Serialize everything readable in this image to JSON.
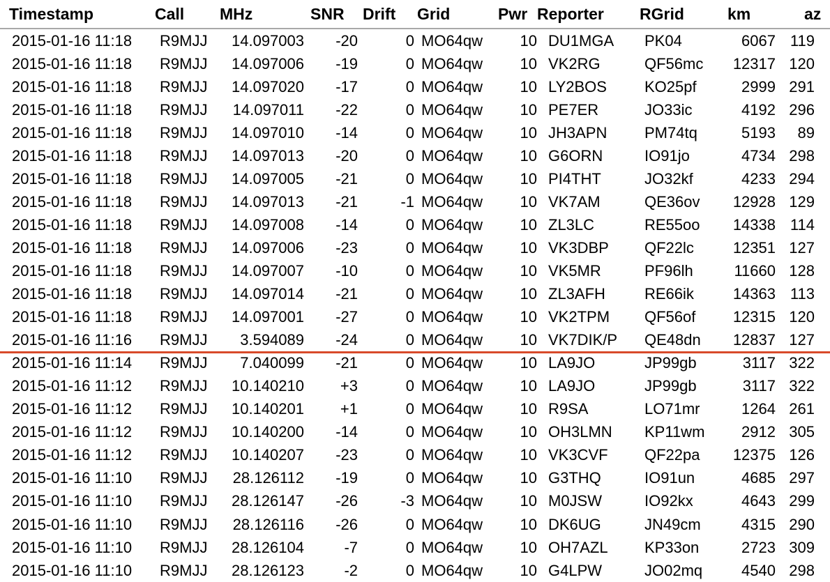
{
  "columns": [
    "Timestamp",
    "Call",
    "MHz",
    "SNR",
    "Drift",
    "Grid",
    "Pwr",
    "Reporter",
    "RGrid",
    "km",
    "az"
  ],
  "colors": {
    "header_rule": "#a8a8a8",
    "separator_line": "#d84a2a"
  },
  "rows": [
    [
      "2015-01-16 11:18",
      "R9MJJ",
      "14.097003",
      "-20",
      "0",
      "MO64qw",
      "10",
      "DU1MGA",
      "PK04",
      "6067",
      "119"
    ],
    [
      "2015-01-16 11:18",
      "R9MJJ",
      "14.097006",
      "-19",
      "0",
      "MO64qw",
      "10",
      "VK2RG",
      "QF56mc",
      "12317",
      "120"
    ],
    [
      "2015-01-16 11:18",
      "R9MJJ",
      "14.097020",
      "-17",
      "0",
      "MO64qw",
      "10",
      "LY2BOS",
      "KO25pf",
      "2999",
      "291"
    ],
    [
      "2015-01-16 11:18",
      "R9MJJ",
      "14.097011",
      "-22",
      "0",
      "MO64qw",
      "10",
      "PE7ER",
      "JO33ic",
      "4192",
      "296"
    ],
    [
      "2015-01-16 11:18",
      "R9MJJ",
      "14.097010",
      "-14",
      "0",
      "MO64qw",
      "10",
      "JH3APN",
      "PM74tq",
      "5193",
      "89"
    ],
    [
      "2015-01-16 11:18",
      "R9MJJ",
      "14.097013",
      "-20",
      "0",
      "MO64qw",
      "10",
      "G6ORN",
      "IO91jo",
      "4734",
      "298"
    ],
    [
      "2015-01-16 11:18",
      "R9MJJ",
      "14.097005",
      "-21",
      "0",
      "MO64qw",
      "10",
      "PI4THT",
      "JO32kf",
      "4233",
      "294"
    ],
    [
      "2015-01-16 11:18",
      "R9MJJ",
      "14.097013",
      "-21",
      "-1",
      "MO64qw",
      "10",
      "VK7AM",
      "QE36ov",
      "12928",
      "129"
    ],
    [
      "2015-01-16 11:18",
      "R9MJJ",
      "14.097008",
      "-14",
      "0",
      "MO64qw",
      "10",
      "ZL3LC",
      "RE55oo",
      "14338",
      "114"
    ],
    [
      "2015-01-16 11:18",
      "R9MJJ",
      "14.097006",
      "-23",
      "0",
      "MO64qw",
      "10",
      "VK3DBP",
      "QF22lc",
      "12351",
      "127"
    ],
    [
      "2015-01-16 11:18",
      "R9MJJ",
      "14.097007",
      "-10",
      "0",
      "MO64qw",
      "10",
      "VK5MR",
      "PF96lh",
      "11660",
      "128"
    ],
    [
      "2015-01-16 11:18",
      "R9MJJ",
      "14.097014",
      "-21",
      "0",
      "MO64qw",
      "10",
      "ZL3AFH",
      "RE66ik",
      "14363",
      "113"
    ],
    [
      "2015-01-16 11:18",
      "R9MJJ",
      "14.097001",
      "-27",
      "0",
      "MO64qw",
      "10",
      "VK2TPM",
      "QF56of",
      "12315",
      "120"
    ],
    [
      "2015-01-16 11:16",
      "R9MJJ",
      "3.594089",
      "-24",
      "0",
      "MO64qw",
      "10",
      "VK7DIK/P",
      "QE48dn",
      "12837",
      "127"
    ],
    [
      "2015-01-16 11:14",
      "R9MJJ",
      "7.040099",
      "-21",
      "0",
      "MO64qw",
      "10",
      "LA9JO",
      "JP99gb",
      "3117",
      "322"
    ],
    [
      "2015-01-16 11:12",
      "R9MJJ",
      "10.140210",
      "+3",
      "0",
      "MO64qw",
      "10",
      "LA9JO",
      "JP99gb",
      "3117",
      "322"
    ],
    [
      "2015-01-16 11:12",
      "R9MJJ",
      "10.140201",
      "+1",
      "0",
      "MO64qw",
      "10",
      "R9SA",
      "LO71mr",
      "1264",
      "261"
    ],
    [
      "2015-01-16 11:12",
      "R9MJJ",
      "10.140200",
      "-14",
      "0",
      "MO64qw",
      "10",
      "OH3LMN",
      "KP11wm",
      "2912",
      "305"
    ],
    [
      "2015-01-16 11:12",
      "R9MJJ",
      "10.140207",
      "-23",
      "0",
      "MO64qw",
      "10",
      "VK3CVF",
      "QF22pa",
      "12375",
      "126"
    ],
    [
      "2015-01-16 11:10",
      "R9MJJ",
      "28.126112",
      "-19",
      "0",
      "MO64qw",
      "10",
      "G3THQ",
      "IO91un",
      "4685",
      "297"
    ],
    [
      "2015-01-16 11:10",
      "R9MJJ",
      "28.126147",
      "-26",
      "-3",
      "MO64qw",
      "10",
      "M0JSW",
      "IO92kx",
      "4643",
      "299"
    ],
    [
      "2015-01-16 11:10",
      "R9MJJ",
      "28.126116",
      "-26",
      "0",
      "MO64qw",
      "10",
      "DK6UG",
      "JN49cm",
      "4315",
      "290"
    ],
    [
      "2015-01-16 11:10",
      "R9MJJ",
      "28.126104",
      "-7",
      "0",
      "MO64qw",
      "10",
      "OH7AZL",
      "KP33on",
      "2723",
      "309"
    ],
    [
      "2015-01-16 11:10",
      "R9MJJ",
      "28.126123",
      "-2",
      "0",
      "MO64qw",
      "10",
      "G4LPW",
      "JO02mq",
      "4540",
      "298"
    ]
  ]
}
